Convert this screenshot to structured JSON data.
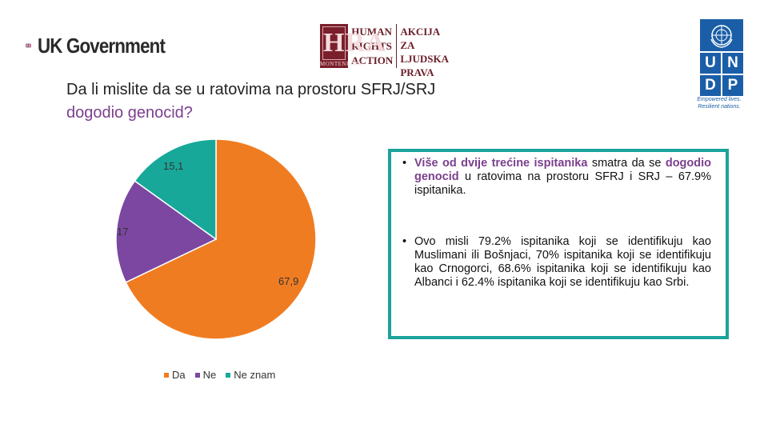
{
  "logos": {
    "uk": {
      "text": "UK Government"
    },
    "hra": {
      "letters": "HRA",
      "sub": "MONTENEGRO",
      "left_lines": [
        "HUMAN",
        "RIGHTS",
        "ACTION"
      ],
      "right_lines": [
        "AKCIJA ZA",
        "LJUDSKA",
        "PRAVA"
      ]
    },
    "undp": {
      "letters": [
        "U",
        "N",
        "D",
        "P"
      ],
      "tagline_1": "Empowered lives.",
      "tagline_2": "Resilient nations."
    }
  },
  "title": {
    "line1": "Da li mislite da se u ratovima na prostoru SFRJ/SRJ",
    "line2": "dogodio genocid?"
  },
  "info": {
    "b1_hl1": "Više od dvije trećine ispitanika",
    "b1_t1": " smatra da se ",
    "b1_hl2": "dogodio genocid",
    "b1_t2": " u ratovima na prostoru SFRJ i SRJ – 67.9% ispitanika.",
    "b2": "Ovo misli 79.2% ispitanika koji se identifikuju kao Muslimani ili Bošnjaci, 70% ispitanika koji se identifikuju kao Crnogorci, 68.6% ispitanika koji se identifikuju kao Albanci i 62.4% ispitanika koji se identifikuju kao Srbi."
  },
  "chart_data": {
    "type": "pie",
    "categories": [
      "Da",
      "Ne",
      "Ne znam"
    ],
    "values": [
      67.9,
      17,
      15.1
    ],
    "data_labels": [
      "67,9",
      "17",
      "15,1"
    ],
    "colors": [
      "#f07c22",
      "#7b47a0",
      "#18a89a"
    ],
    "legend": [
      "Da",
      "Ne",
      "Ne znam"
    ],
    "legend_position": "bottom",
    "start": "12 o'clock",
    "direction": "clockwise"
  }
}
